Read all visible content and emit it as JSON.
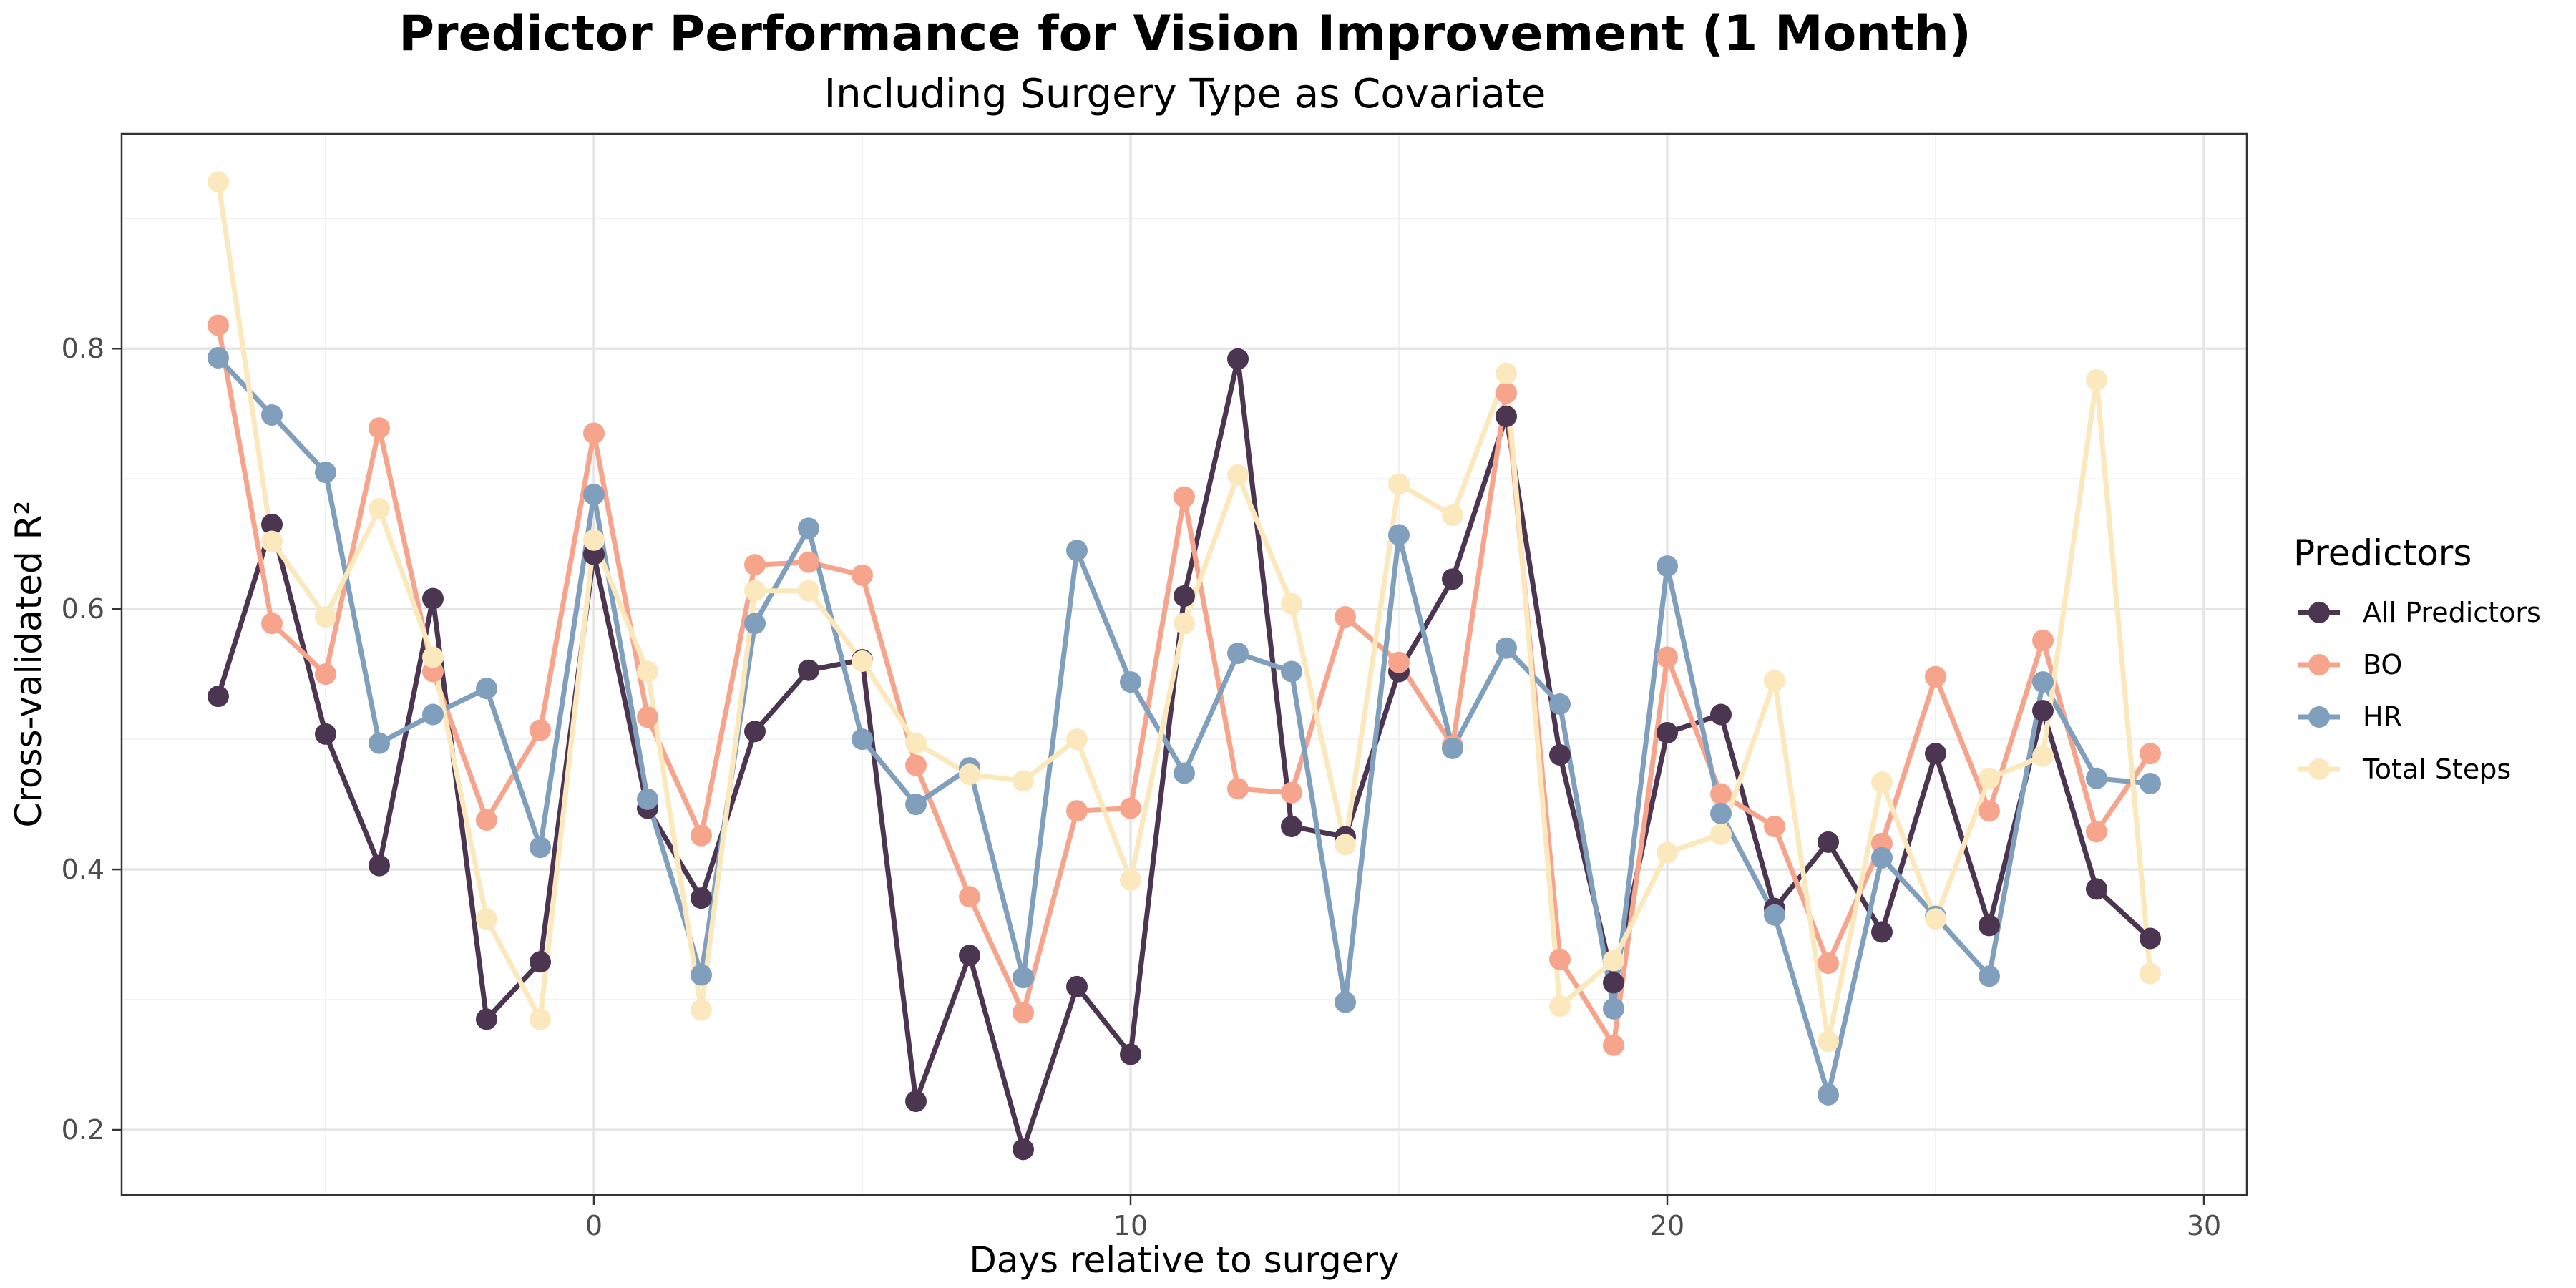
{
  "chart_data": {
    "type": "line",
    "title": "Predictor Performance for Vision Improvement (1 Month)",
    "subtitle": "Including Surgery Type as Covariate",
    "xlabel": "Days relative to surgery",
    "ylabel": "Cross-validated R²",
    "xlim": [
      -8.8,
      30.8
    ],
    "ylim": [
      0.15,
      0.965
    ],
    "x_ticks": [
      0,
      10,
      20,
      30
    ],
    "y_ticks": [
      0.2,
      0.4,
      0.6,
      0.8
    ],
    "grid": true,
    "legend_title": "Predictors",
    "legend_position": "right",
    "x": [
      -7,
      -6,
      -5,
      -4,
      -3,
      -2,
      -1,
      0,
      1,
      2,
      3,
      4,
      5,
      6,
      7,
      8,
      9,
      10,
      11,
      12,
      13,
      14,
      15,
      16,
      17,
      18,
      19,
      20,
      21,
      22,
      23,
      24,
      25,
      26,
      27,
      28,
      29
    ],
    "series": [
      {
        "name": "All Predictors",
        "color": "#4c3550",
        "values": [
          0.533,
          0.665,
          0.504,
          0.403,
          0.608,
          0.285,
          0.329,
          0.642,
          0.447,
          0.378,
          0.506,
          0.553,
          0.561,
          0.222,
          0.334,
          0.185,
          0.31,
          0.258,
          0.61,
          0.792,
          0.433,
          0.425,
          0.552,
          0.623,
          0.748,
          0.488,
          0.313,
          0.505,
          0.519,
          0.37,
          0.421,
          0.352,
          0.489,
          0.357,
          0.522,
          0.385,
          0.347
        ]
      },
      {
        "name": "BO",
        "color": "#f7a48c",
        "values": [
          0.818,
          0.589,
          0.55,
          0.739,
          0.552,
          0.438,
          0.507,
          0.735,
          0.517,
          0.426,
          0.634,
          0.636,
          0.626,
          0.48,
          0.379,
          0.29,
          0.445,
          0.447,
          0.686,
          0.462,
          0.459,
          0.594,
          0.559,
          0.495,
          0.766,
          0.331,
          0.265,
          0.563,
          0.458,
          0.433,
          0.328,
          0.42,
          0.548,
          0.445,
          0.576,
          0.429,
          0.489
        ]
      },
      {
        "name": "HR",
        "color": "#7f9fbd",
        "values": [
          0.793,
          0.749,
          0.705,
          0.497,
          0.519,
          0.539,
          0.417,
          0.688,
          0.454,
          0.319,
          0.589,
          0.662,
          0.5,
          0.45,
          0.478,
          0.317,
          0.645,
          0.544,
          0.474,
          0.566,
          0.552,
          0.298,
          0.657,
          0.493,
          0.57,
          0.527,
          0.293,
          0.633,
          0.443,
          0.365,
          0.227,
          0.409,
          0.364,
          0.318,
          0.544,
          0.47,
          0.466
        ]
      },
      {
        "name": "Total Steps",
        "color": "#fbe8bd",
        "values": [
          0.928,
          0.652,
          0.594,
          0.677,
          0.563,
          0.362,
          0.285,
          0.653,
          0.552,
          0.292,
          0.614,
          0.614,
          0.56,
          0.497,
          0.473,
          0.468,
          0.5,
          0.392,
          0.589,
          0.703,
          0.604,
          0.419,
          0.696,
          0.672,
          0.781,
          0.295,
          0.33,
          0.413,
          0.427,
          0.545,
          0.268,
          0.467,
          0.362,
          0.47,
          0.487,
          0.776,
          0.32
        ]
      }
    ]
  }
}
